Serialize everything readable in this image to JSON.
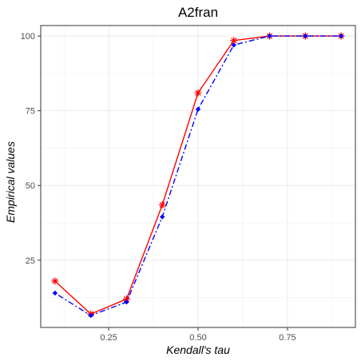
{
  "chart_data": {
    "type": "line",
    "title": "A2fran",
    "xlabel": "Kendall's tau",
    "ylabel": "Empirical values",
    "x": [
      0.1,
      0.2,
      0.3,
      0.4,
      0.5,
      0.6,
      0.7,
      0.8,
      0.9
    ],
    "xlim": [
      0.06,
      0.94
    ],
    "ylim": [
      2.5,
      103.5
    ],
    "x_ticks": [
      0.25,
      0.5,
      0.75
    ],
    "x_tick_labels": [
      "0.25",
      "0.50",
      "0.75"
    ],
    "y_ticks": [
      25,
      50,
      75,
      100
    ],
    "y_tick_labels": [
      "25",
      "50",
      "75",
      "100"
    ],
    "grid": true,
    "legend": "none",
    "series": [
      {
        "values": [
          18,
          7,
          12,
          43.5,
          81,
          98.5,
          100,
          100,
          100
        ],
        "color": "#ff0000",
        "line_style": "solid",
        "marker": "asterisk"
      },
      {
        "values": [
          14,
          6.5,
          11,
          39.5,
          75.5,
          97,
          100,
          100,
          100
        ],
        "color": "#0000ff",
        "line_style": "dotdash",
        "marker": "diamond"
      }
    ]
  }
}
